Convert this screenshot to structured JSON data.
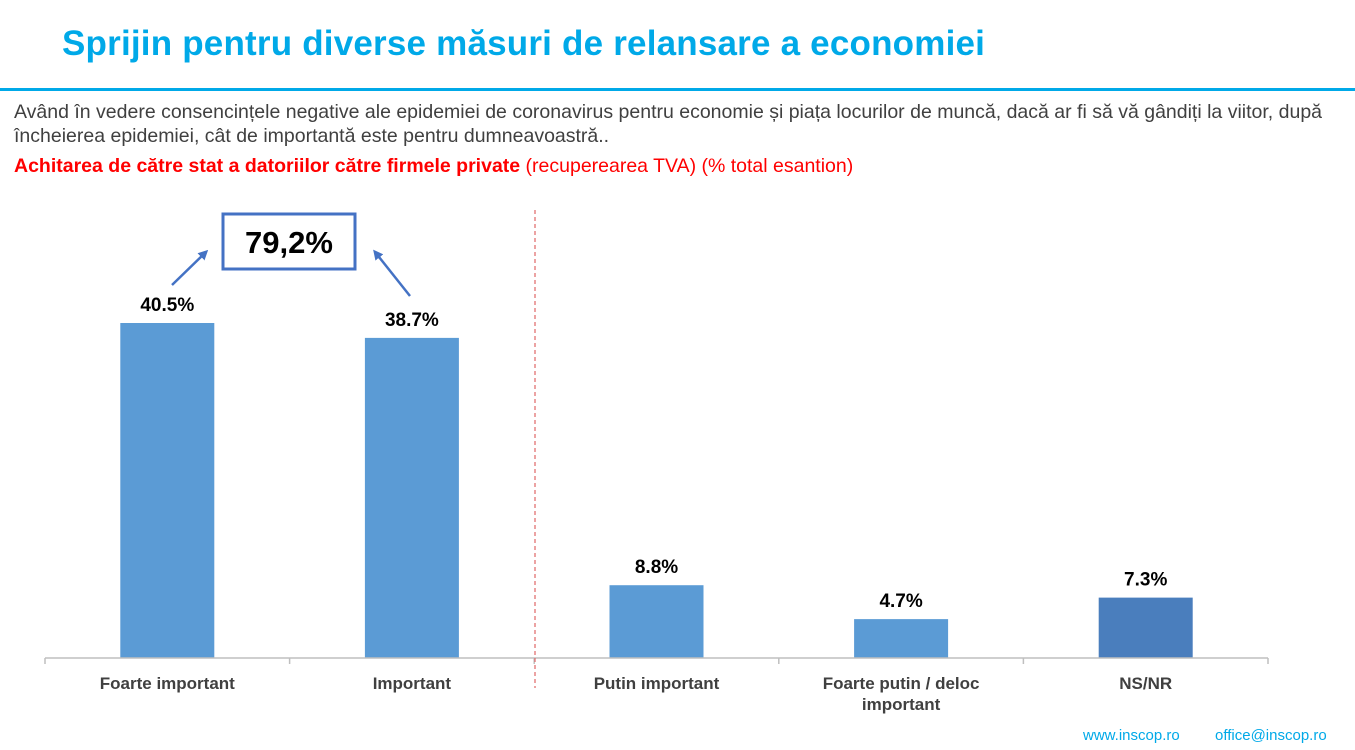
{
  "header": {
    "title": "Sprijin pentru diverse măsuri de relansare a economiei",
    "question": "Având în vedere consencințele negative ale epidemiei de coronavirus pentru economie și piața locurilor de muncă, dacă ar fi să vă gândiți la viitor, după încheierea epidemiei, cât de importantă este pentru dumneavoastră..",
    "subject_bold": "Achitarea de către stat a datoriilor către firmele private",
    "subject_rest": " (recuperearea TVA) (% total esantion)"
  },
  "chart_data": {
    "type": "bar",
    "categories": [
      "Foarte important",
      "Important",
      "Putin important",
      "Foarte putin / deloc important",
      "NS/NR"
    ],
    "category_lines": [
      [
        "Foarte important"
      ],
      [
        "Important"
      ],
      [
        "Putin important"
      ],
      [
        "Foarte putin / deloc",
        "important"
      ],
      [
        "NS/NR"
      ]
    ],
    "values": [
      40.5,
      38.7,
      8.8,
      4.7,
      7.3
    ],
    "value_labels": [
      "40.5%",
      "38.7%",
      "8.8%",
      "4.7%",
      "7.3%"
    ],
    "bar_colors": [
      "#5b9bd5",
      "#5b9bd5",
      "#5b9bd5",
      "#5b9bd5",
      "#4a7ebd"
    ],
    "ylim": [
      0,
      40.5
    ],
    "annotation": {
      "text": "79,2%",
      "sum_of": [
        "Foarte important",
        "Important"
      ],
      "box_color": "#4472c4"
    },
    "separator_color": "#e06666"
  },
  "footer": {
    "website": "www.inscop.ro",
    "email": "office@inscop.ro"
  }
}
